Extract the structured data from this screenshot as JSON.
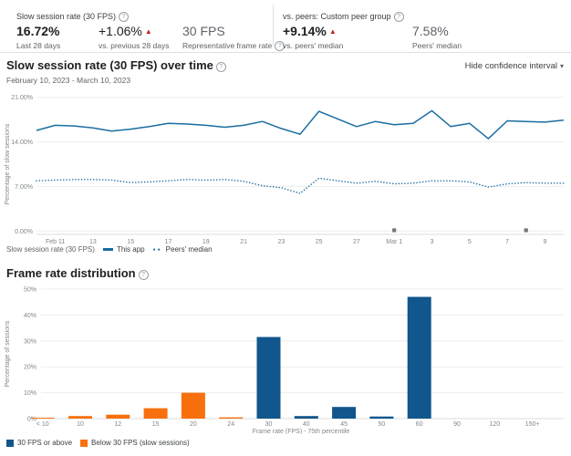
{
  "colors": {
    "line_blue": "#1a6da1",
    "bar_blue": "#11568c",
    "bar_orange": "#f8700e",
    "delta_red": "#c5221f",
    "grid": "#ebedef",
    "axis": "#dadce0",
    "tick_text": "#80868b",
    "marker_grey": "#757575"
  },
  "summary": {
    "left": {
      "title": "Slow session rate (30 FPS)",
      "metrics": [
        {
          "value": "16.72%",
          "label": "Last 28 days"
        },
        {
          "value": "+1.06%",
          "label": "vs. previous 28 days"
        },
        {
          "value": "30 FPS",
          "label": "Representative frame rate"
        }
      ]
    },
    "right": {
      "title": "vs. peers: Custom peer group",
      "metrics": [
        {
          "value": "+9.14%",
          "label": "vs. peers' median"
        },
        {
          "value": "7.58%",
          "label": "Peers' median"
        }
      ]
    }
  },
  "line_section": {
    "title": "Slow session rate (30 FPS) over time",
    "date_range": "February 10, 2023 - March 10, 2023",
    "dropdown_label": "Hide confidence interval",
    "legend_prefix": "Slow session rate (30 FPS)",
    "legend_this_app": "This app",
    "legend_peers": "Peers' median"
  },
  "bar_section": {
    "title": "Frame rate distribution",
    "legend_above": "30 FPS or above",
    "legend_below": "Below 30 FPS (slow sessions)"
  },
  "chart_data": [
    {
      "type": "line",
      "title": "Slow session rate (30 FPS) over time",
      "ylabel": "Percentage of slow sessions",
      "ylim": [
        0,
        21
      ],
      "yticks": [
        {
          "v": 21,
          "label": "21.00%"
        },
        {
          "v": 14,
          "label": "14.00%"
        },
        {
          "v": 7,
          "label": "7.00%"
        },
        {
          "v": 0,
          "label": "0.00%"
        }
      ],
      "x": [
        "Feb 10",
        "Feb 11",
        "Feb 12",
        "Feb 13",
        "Feb 14",
        "Feb 15",
        "Feb 16",
        "Feb 17",
        "Feb 18",
        "Feb 19",
        "Feb 20",
        "Feb 21",
        "Feb 22",
        "Feb 23",
        "Feb 24",
        "Feb 25",
        "Feb 26",
        "Feb 27",
        "Feb 28",
        "Mar 1",
        "Mar 2",
        "Mar 3",
        "Mar 4",
        "Mar 5",
        "Mar 6",
        "Mar 7",
        "Mar 8",
        "Mar 9",
        "Mar 10"
      ],
      "x_ticks": [
        {
          "index": 1,
          "label": "Feb 11"
        },
        {
          "index": 3,
          "label": "13"
        },
        {
          "index": 5,
          "label": "15"
        },
        {
          "index": 7,
          "label": "17"
        },
        {
          "index": 9,
          "label": "19"
        },
        {
          "index": 11,
          "label": "21"
        },
        {
          "index": 13,
          "label": "23"
        },
        {
          "index": 15,
          "label": "25"
        },
        {
          "index": 17,
          "label": "27"
        },
        {
          "index": 19,
          "label": "Mar 1"
        },
        {
          "index": 21,
          "label": "3"
        },
        {
          "index": 23,
          "label": "5"
        },
        {
          "index": 25,
          "label": "7"
        },
        {
          "index": 27,
          "label": "9"
        }
      ],
      "series": [
        {
          "name": "This app",
          "style": "solid",
          "values": [
            15.8,
            16.6,
            16.5,
            16.2,
            15.7,
            16.0,
            16.4,
            16.9,
            16.8,
            16.6,
            16.3,
            16.6,
            17.2,
            16.1,
            15.2,
            18.8,
            17.6,
            16.4,
            17.2,
            16.7,
            16.9,
            18.9,
            16.4,
            16.9,
            14.5,
            17.3,
            17.2,
            17.1,
            17.4
          ]
        },
        {
          "name": "Peers' median",
          "style": "dotted",
          "values": [
            7.9,
            8.0,
            8.1,
            8.1,
            8.0,
            7.6,
            7.7,
            7.9,
            8.1,
            8.0,
            8.1,
            7.8,
            7.1,
            6.8,
            5.9,
            8.3,
            7.9,
            7.5,
            7.8,
            7.4,
            7.5,
            7.9,
            7.9,
            7.7,
            6.9,
            7.4,
            7.6,
            7.5,
            7.5
          ]
        }
      ],
      "annotation_marker_days": [
        19,
        26
      ],
      "legend_position": "bottom"
    },
    {
      "type": "bar",
      "title": "Frame rate distribution",
      "xlabel": "Frame rate (FPS) - 75th percentile",
      "ylabel": "Percentage of sessions",
      "ylim": [
        0,
        50
      ],
      "yticks": [
        "0%",
        "10%",
        "20%",
        "30%",
        "40%",
        "50%"
      ],
      "categories": [
        "< 10",
        "10",
        "12",
        "15",
        "20",
        "24",
        "30",
        "40",
        "45",
        "50",
        "60",
        "90",
        "120",
        "150+"
      ],
      "values": [
        0.2,
        1.0,
        1.5,
        4.0,
        10.0,
        0.5,
        31.5,
        1.0,
        4.5,
        0.8,
        47.0,
        0,
        0,
        0
      ],
      "groups": [
        "below",
        "below",
        "below",
        "below",
        "below",
        "below",
        "above",
        "above",
        "above",
        "above",
        "above",
        "above",
        "above",
        "above"
      ],
      "legend": [
        "30 FPS or above",
        "Below 30 FPS (slow sessions)"
      ],
      "legend_position": "bottom"
    }
  ]
}
